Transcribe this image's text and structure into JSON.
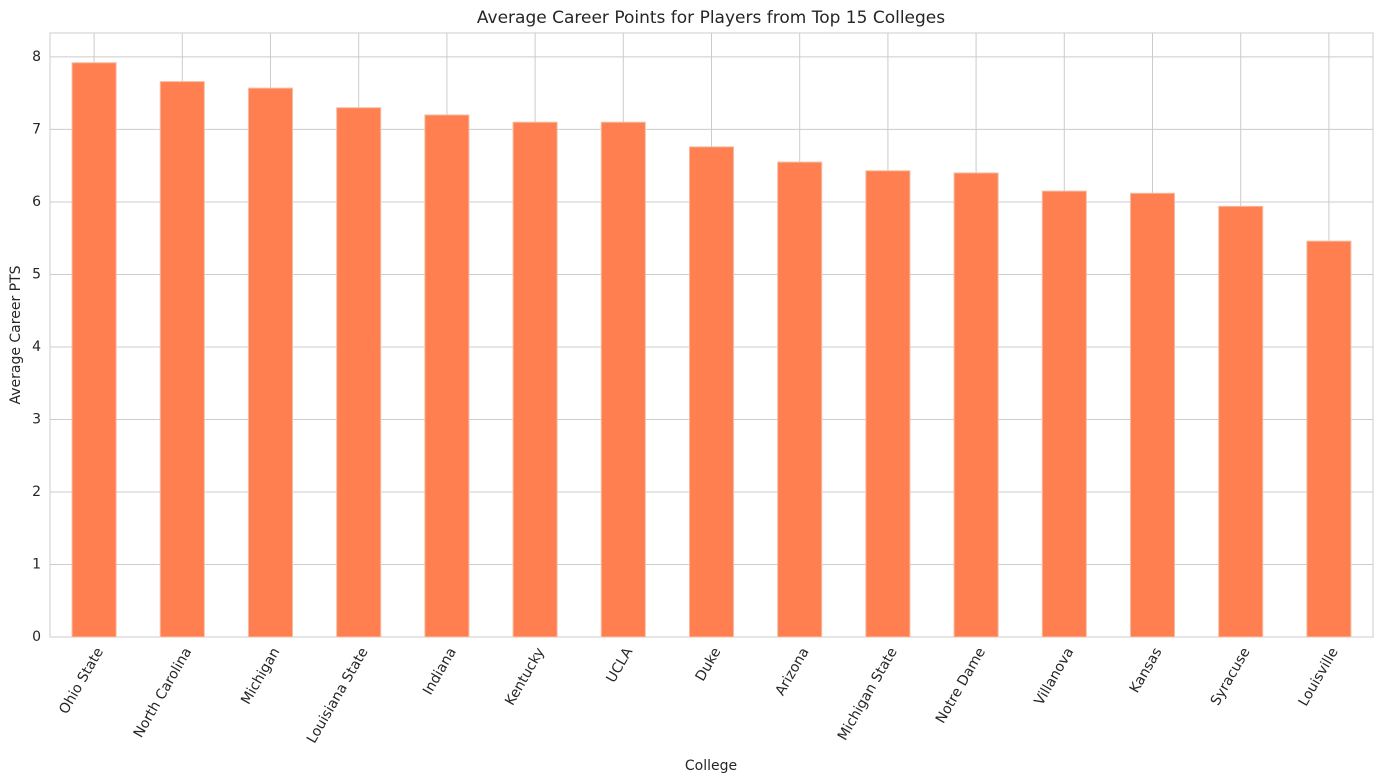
{
  "chart_data": {
    "type": "bar",
    "title": "Average Career Points for Players from Top 15 Colleges",
    "x_label": "College",
    "y_label": "Average Career PTS",
    "categories": [
      "Ohio State",
      "North Carolina",
      "Michigan",
      "Louisiana State",
      "Indiana",
      "Kentucky",
      "UCLA",
      "Duke",
      "Arizona",
      "Michigan State",
      "Notre Dame",
      "Villanova",
      "Kansas",
      "Syracuse",
      "Louisville"
    ],
    "values": [
      7.92,
      7.66,
      7.57,
      7.3,
      7.2,
      7.1,
      7.1,
      6.76,
      6.55,
      6.43,
      6.4,
      6.15,
      6.12,
      5.94,
      5.46
    ],
    "color": "#ff7f50",
    "ylim": [
      0,
      8.33
    ],
    "yticks": [
      0,
      1,
      2,
      3,
      4,
      5,
      6,
      7,
      8
    ],
    "grid": true
  }
}
